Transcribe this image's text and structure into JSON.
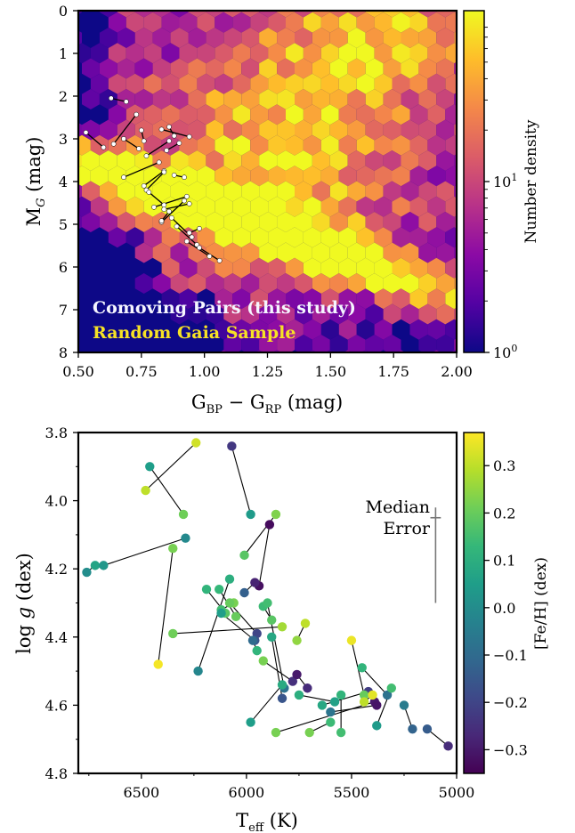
{
  "chart_data": [
    {
      "type": "heatmap",
      "xlabel_main": "G",
      "xlabel_sub1": "BP",
      "xlabel_mid": " − G",
      "xlabel_sub2": "RP",
      "xlabel_unit": " (mag)",
      "ylabel_main": "M",
      "ylabel_sub": "G",
      "ylabel_unit": " (mag)",
      "xlim": [
        0.5,
        2.0
      ],
      "ylim": [
        8,
        0
      ],
      "xticks": [
        "0.50",
        "0.75",
        "1.00",
        "1.25",
        "1.50",
        "1.75",
        "2.00"
      ],
      "yticks": [
        "0",
        "1",
        "2",
        "3",
        "4",
        "5",
        "6",
        "7",
        "8"
      ],
      "colorbar_label": "Number density",
      "colorbar_scale": "log",
      "colorbar_ticks": [
        {
          "base": "10",
          "exp": "0"
        },
        {
          "base": "10",
          "exp": "1"
        }
      ],
      "colormap": [
        "#0d0887",
        "#5302a3",
        "#8b0aa5",
        "#b83289",
        "#db5c68",
        "#f48849",
        "#febd2a",
        "#f0f921"
      ],
      "legend": [
        {
          "text": "Comoving Pairs (this study)",
          "color": "#f5f5ff"
        },
        {
          "text": "Random Gaia Sample",
          "color": "#f7e225"
        }
      ],
      "pairs": [
        {
          "a": [
            0.63,
            2.05
          ],
          "b": [
            0.69,
            2.13
          ]
        },
        {
          "a": [
            0.53,
            2.85
          ],
          "b": [
            0.6,
            3.2
          ]
        },
        {
          "a": [
            0.64,
            3.12
          ],
          "b": [
            0.73,
            2.43
          ]
        },
        {
          "a": [
            0.68,
            3.0
          ],
          "b": [
            0.74,
            3.23
          ]
        },
        {
          "a": [
            0.75,
            2.8
          ],
          "b": [
            0.76,
            3.05
          ]
        },
        {
          "a": [
            0.83,
            2.78
          ],
          "b": [
            0.94,
            2.95
          ]
        },
        {
          "a": [
            0.86,
            2.72
          ],
          "b": [
            0.88,
            2.93
          ]
        },
        {
          "a": [
            0.86,
            3.05
          ],
          "b": [
            0.77,
            3.4
          ]
        },
        {
          "a": [
            0.68,
            3.9
          ],
          "b": [
            0.82,
            3.55
          ]
        },
        {
          "a": [
            0.85,
            3.27
          ],
          "b": [
            0.9,
            3.1
          ]
        },
        {
          "a": [
            0.84,
            3.75
          ],
          "b": [
            0.76,
            4.1
          ]
        },
        {
          "a": [
            0.88,
            3.85
          ],
          "b": [
            0.92,
            3.9
          ]
        },
        {
          "a": [
            0.77,
            4.2
          ],
          "b": [
            0.84,
            3.78
          ]
        },
        {
          "a": [
            0.78,
            4.25
          ],
          "b": [
            0.84,
            4.55
          ]
        },
        {
          "a": [
            0.8,
            4.6
          ],
          "b": [
            0.93,
            4.35
          ]
        },
        {
          "a": [
            0.84,
            4.65
          ],
          "b": [
            0.94,
            4.52
          ]
        },
        {
          "a": [
            0.83,
            4.95
          ],
          "b": [
            0.92,
            4.45
          ]
        },
        {
          "a": [
            0.87,
            4.85
          ],
          "b": [
            0.95,
            5.3
          ]
        },
        {
          "a": [
            0.89,
            5.05
          ],
          "b": [
            0.97,
            5.48
          ]
        },
        {
          "a": [
            0.93,
            5.4
          ],
          "b": [
            1.02,
            5.75
          ]
        },
        {
          "a": [
            0.98,
            5.55
          ],
          "b": [
            1.06,
            5.85
          ]
        },
        {
          "a": [
            0.94,
            5.2
          ],
          "b": [
            0.98,
            5.1
          ]
        },
        {
          "a": [
            0.86,
            4.7
          ],
          "b": [
            0.83,
            4.92
          ]
        }
      ]
    },
    {
      "type": "scatter",
      "xlabel_main": "T",
      "xlabel_sub": "eff",
      "xlabel_unit": " (K)",
      "ylabel_pre": "log ",
      "ylabel_var": "g",
      "ylabel_unit": " (dex)",
      "xlim": [
        6800,
        5000
      ],
      "ylim": [
        4.8,
        3.8
      ],
      "xticks": [
        "6500",
        "6000",
        "5500",
        "5000"
      ],
      "yticks": [
        "3.8",
        "4.0",
        "4.2",
        "4.4",
        "4.6",
        "4.8"
      ],
      "colorbar_label": "[Fe/H] (dex)",
      "colorbar_range": [
        -0.35,
        0.37
      ],
      "colorbar_ticks": [
        "0.3",
        "0.2",
        "0.1",
        "0.0",
        "−0.1",
        "−0.2",
        "−0.3"
      ],
      "colormap": [
        "#440154",
        "#482878",
        "#3e4989",
        "#31688e",
        "#26828e",
        "#1f9e89",
        "#35b779",
        "#6ece58",
        "#b5de2b",
        "#fde725"
      ],
      "error_bar": {
        "line1": "Median",
        "line2": "Error",
        "teff": 5100,
        "logg_center": 4.16,
        "logg_half": 0.14,
        "teff_half": 25
      },
      "pairs": [
        {
          "a": {
            "teff": 6240,
            "logg": 3.83,
            "feh": 0.32
          },
          "b": {
            "teff": 6480,
            "logg": 3.97,
            "feh": 0.3
          }
        },
        {
          "a": {
            "teff": 6460,
            "logg": 3.9,
            "feh": 0.05
          },
          "b": {
            "teff": 6300,
            "logg": 4.04,
            "feh": 0.21
          }
        },
        {
          "a": {
            "teff": 6070,
            "logg": 3.84,
            "feh": -0.23
          },
          "b": {
            "teff": 5980,
            "logg": 4.04,
            "feh": 0.04
          }
        },
        {
          "a": {
            "teff": 5860,
            "logg": 4.04,
            "feh": 0.23
          },
          "b": {
            "teff": 6010,
            "logg": 4.16,
            "feh": 0.18
          }
        },
        {
          "a": {
            "teff": 5890,
            "logg": 4.07,
            "feh": -0.33
          },
          "b": {
            "teff": 5940,
            "logg": 4.25,
            "feh": -0.32
          }
        },
        {
          "a": {
            "teff": 6760,
            "logg": 4.21,
            "feh": 0.0
          },
          "b": {
            "teff": 6720,
            "logg": 4.19,
            "feh": 0.07
          }
        },
        {
          "a": {
            "teff": 6680,
            "logg": 4.19,
            "feh": 0.03
          },
          "b": {
            "teff": 6290,
            "logg": 4.11,
            "feh": -0.01
          }
        },
        {
          "a": {
            "teff": 6350,
            "logg": 4.14,
            "feh": 0.22
          },
          "b": {
            "teff": 6420,
            "logg": 4.48,
            "feh": 0.36
          }
        },
        {
          "a": {
            "teff": 6350,
            "logg": 4.39,
            "feh": 0.21
          },
          "b": {
            "teff": 5830,
            "logg": 4.37,
            "feh": 0.27
          }
        },
        {
          "a": {
            "teff": 6230,
            "logg": 4.5,
            "feh": -0.02
          },
          "b": {
            "teff": 6080,
            "logg": 4.23,
            "feh": 0.1
          }
        },
        {
          "a": {
            "teff": 6130,
            "logg": 4.26,
            "feh": 0.13
          },
          "b": {
            "teff": 6050,
            "logg": 4.34,
            "feh": 0.2
          }
        },
        {
          "a": {
            "teff": 6190,
            "logg": 4.26,
            "feh": 0.12
          },
          "b": {
            "teff": 6100,
            "logg": 4.33,
            "feh": 0.18
          }
        },
        {
          "a": {
            "teff": 6060,
            "logg": 4.3,
            "feh": 0.22
          },
          "b": {
            "teff": 6120,
            "logg": 4.32,
            "feh": 0.15
          }
        },
        {
          "a": {
            "teff": 6010,
            "logg": 4.27,
            "feh": -0.13
          },
          "b": {
            "teff": 5960,
            "logg": 4.24,
            "feh": -0.28
          }
        },
        {
          "a": {
            "teff": 6080,
            "logg": 4.3,
            "feh": 0.2
          },
          "b": {
            "teff": 5950,
            "logg": 4.39,
            "feh": -0.2
          }
        },
        {
          "a": {
            "teff": 6120,
            "logg": 4.33,
            "feh": 0.05
          },
          "b": {
            "teff": 5960,
            "logg": 4.41,
            "feh": -0.16
          }
        },
        {
          "a": {
            "teff": 5920,
            "logg": 4.31,
            "feh": 0.14
          },
          "b": {
            "teff": 5880,
            "logg": 4.35,
            "feh": 0.18
          }
        },
        {
          "a": {
            "teff": 5970,
            "logg": 4.41,
            "feh": -0.1
          },
          "b": {
            "teff": 5950,
            "logg": 4.44,
            "feh": 0.12
          }
        },
        {
          "a": {
            "teff": 5900,
            "logg": 4.3,
            "feh": 0.15
          },
          "b": {
            "teff": 5820,
            "logg": 4.55,
            "feh": -0.08
          }
        },
        {
          "a": {
            "teff": 5760,
            "logg": 4.41,
            "feh": 0.25
          },
          "b": {
            "teff": 5720,
            "logg": 4.36,
            "feh": 0.3
          }
        },
        {
          "a": {
            "teff": 5880,
            "logg": 4.4,
            "feh": 0.08
          },
          "b": {
            "teff": 5830,
            "logg": 4.58,
            "feh": -0.16
          }
        },
        {
          "a": {
            "teff": 5920,
            "logg": 4.47,
            "feh": 0.22
          },
          "b": {
            "teff": 5780,
            "logg": 4.53,
            "feh": -0.25
          }
        },
        {
          "a": {
            "teff": 5760,
            "logg": 4.51,
            "feh": -0.3
          },
          "b": {
            "teff": 5710,
            "logg": 4.55,
            "feh": -0.26
          }
        },
        {
          "a": {
            "teff": 5830,
            "logg": 4.54,
            "feh": 0.09
          },
          "b": {
            "teff": 5980,
            "logg": 4.65,
            "feh": 0.05
          }
        },
        {
          "a": {
            "teff": 5750,
            "logg": 4.57,
            "feh": 0.1
          },
          "b": {
            "teff": 5580,
            "logg": 4.59,
            "feh": 0.06
          }
        },
        {
          "a": {
            "teff": 5550,
            "logg": 4.57,
            "feh": 0.12
          },
          "b": {
            "teff": 5550,
            "logg": 4.68,
            "feh": 0.15
          }
        },
        {
          "a": {
            "teff": 5700,
            "logg": 4.68,
            "feh": 0.22
          },
          "b": {
            "teff": 5600,
            "logg": 4.65,
            "feh": 0.14
          }
        },
        {
          "a": {
            "teff": 5860,
            "logg": 4.68,
            "feh": 0.22
          },
          "b": {
            "teff": 5390,
            "logg": 4.59,
            "feh": -0.3
          }
        },
        {
          "a": {
            "teff": 5640,
            "logg": 4.6,
            "feh": 0.08
          },
          "b": {
            "teff": 5420,
            "logg": 4.56,
            "feh": -0.22
          }
        },
        {
          "a": {
            "teff": 5500,
            "logg": 4.41,
            "feh": 0.35
          },
          "b": {
            "teff": 5440,
            "logg": 4.57,
            "feh": 0.2
          }
        },
        {
          "a": {
            "teff": 5400,
            "logg": 4.57,
            "feh": 0.34
          },
          "b": {
            "teff": 5440,
            "logg": 4.59,
            "feh": 0.3
          }
        },
        {
          "a": {
            "teff": 5450,
            "logg": 4.49,
            "feh": 0.12
          },
          "b": {
            "teff": 5330,
            "logg": 4.57,
            "feh": -0.08
          }
        },
        {
          "a": {
            "teff": 5380,
            "logg": 4.66,
            "feh": 0.04
          },
          "b": {
            "teff": 5310,
            "logg": 4.55,
            "feh": 0.15
          }
        },
        {
          "a": {
            "teff": 5250,
            "logg": 4.6,
            "feh": -0.05
          },
          "b": {
            "teff": 5210,
            "logg": 4.67,
            "feh": -0.12
          }
        },
        {
          "a": {
            "teff": 5140,
            "logg": 4.67,
            "feh": -0.14
          },
          "b": {
            "teff": 5040,
            "logg": 4.72,
            "feh": -0.26
          }
        },
        {
          "a": {
            "teff": 5600,
            "logg": 4.62,
            "feh": -0.07
          },
          "b": {
            "teff": 5380,
            "logg": 4.6,
            "feh": -0.31
          }
        }
      ]
    }
  ]
}
